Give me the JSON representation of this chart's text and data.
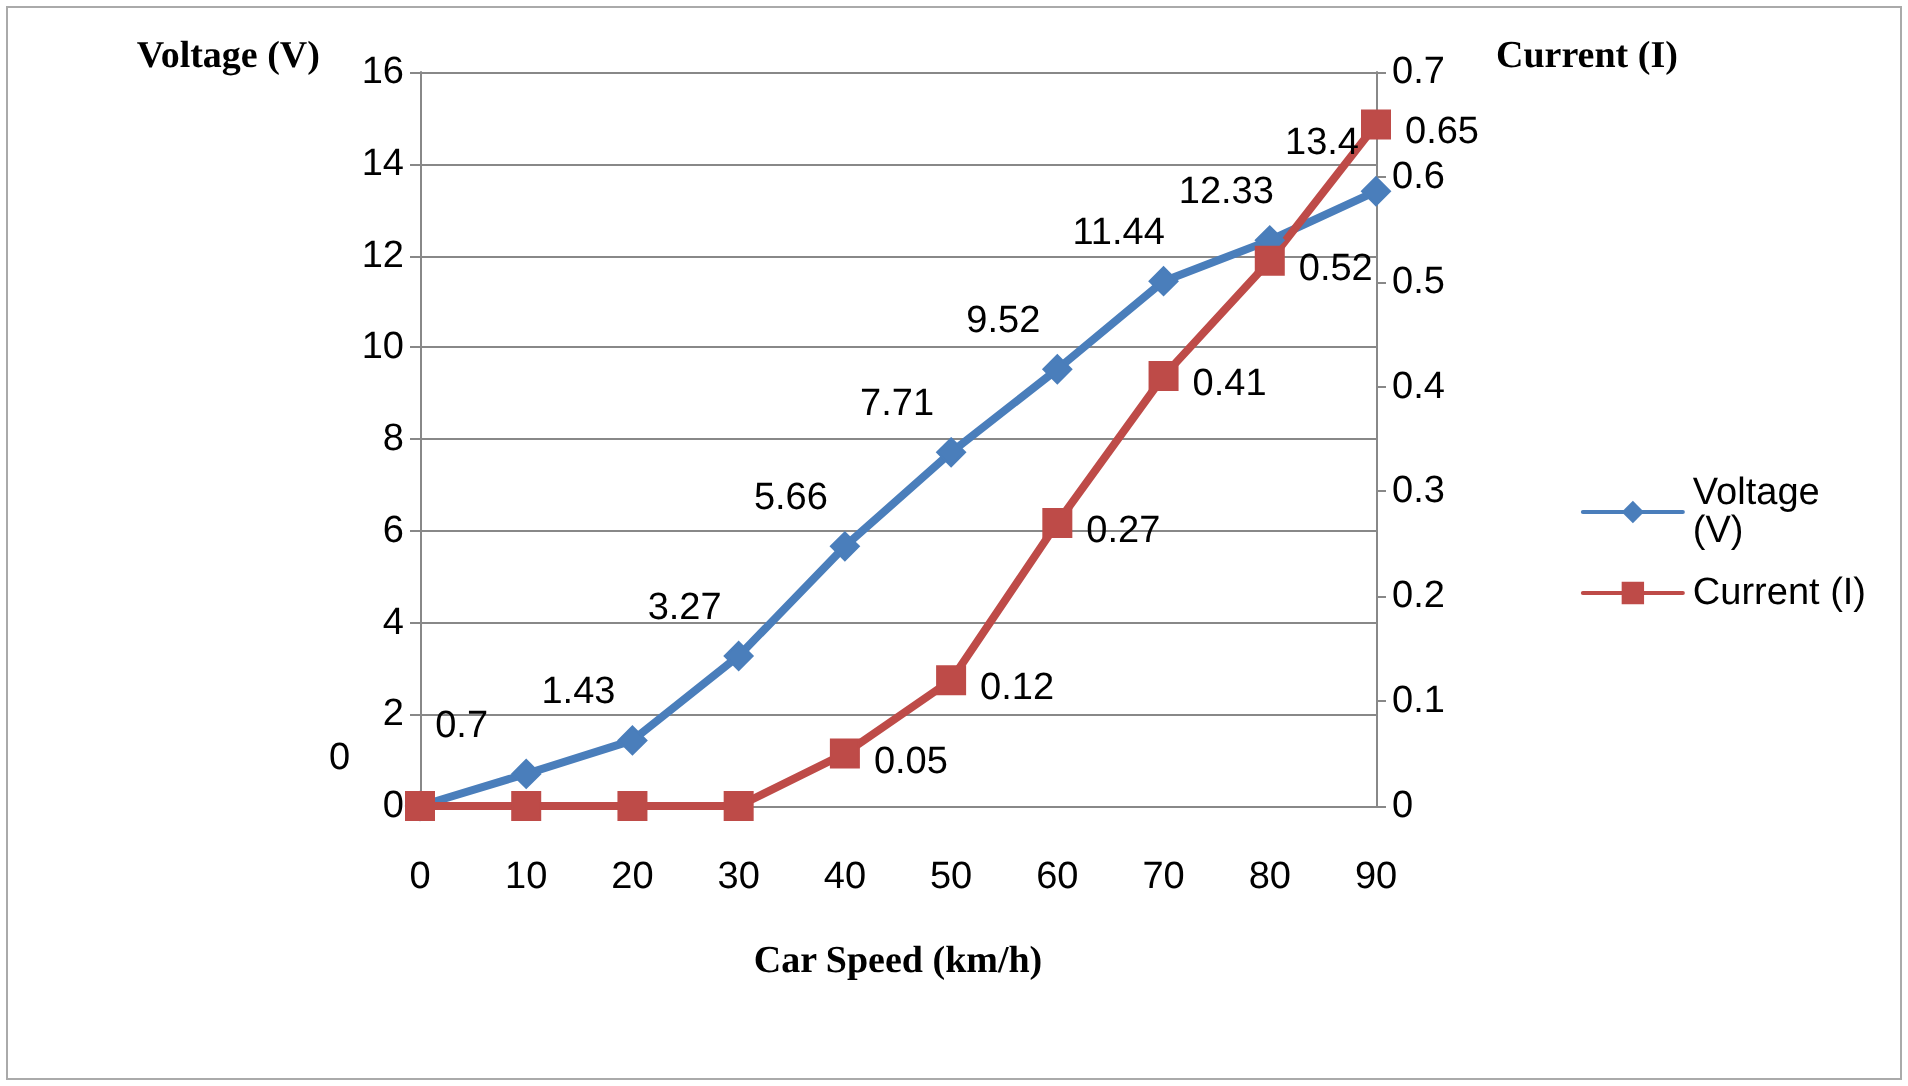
{
  "chart_data": {
    "type": "line",
    "xlabel": "Car Speed (km/h)",
    "ylabel": "Voltage (V)",
    "y2label": "Current (I)",
    "categories": [
      "0",
      "10",
      "20",
      "30",
      "40",
      "50",
      "60",
      "70",
      "80",
      "90"
    ],
    "series": [
      {
        "name": "Voltage (V)",
        "color": "#4a7ebb",
        "marker": "diamond",
        "values": [
          0,
          0.7,
          1.43,
          3.27,
          5.66,
          7.71,
          9.52,
          11.44,
          12.33,
          13.4
        ],
        "value_labels": [
          "0",
          "0.7",
          "1.43",
          "3.27",
          "5.66",
          "7.71",
          "9.52",
          "11.44",
          "12.33",
          "13.4"
        ]
      },
      {
        "name": "Current (I)",
        "color": "#be4b48",
        "marker": "square",
        "axis": "y2",
        "values": [
          0,
          0,
          0,
          0,
          0.05,
          0.12,
          0.27,
          0.41,
          0.52,
          0.65
        ],
        "value_labels": [
          null,
          null,
          null,
          null,
          "0.05",
          "0.12",
          "0.27",
          "0.41",
          "0.52",
          "0.65"
        ]
      }
    ],
    "ylim": [
      0,
      16
    ],
    "yticks": [
      0,
      2,
      4,
      6,
      8,
      10,
      12,
      14,
      16
    ],
    "y2lim": [
      0,
      0.7
    ],
    "y2ticks": [
      0,
      0.1,
      0.2,
      0.3,
      0.4,
      0.5,
      0.6,
      0.7
    ],
    "grid": "y",
    "legend": "right",
    "line_style": "solid"
  }
}
